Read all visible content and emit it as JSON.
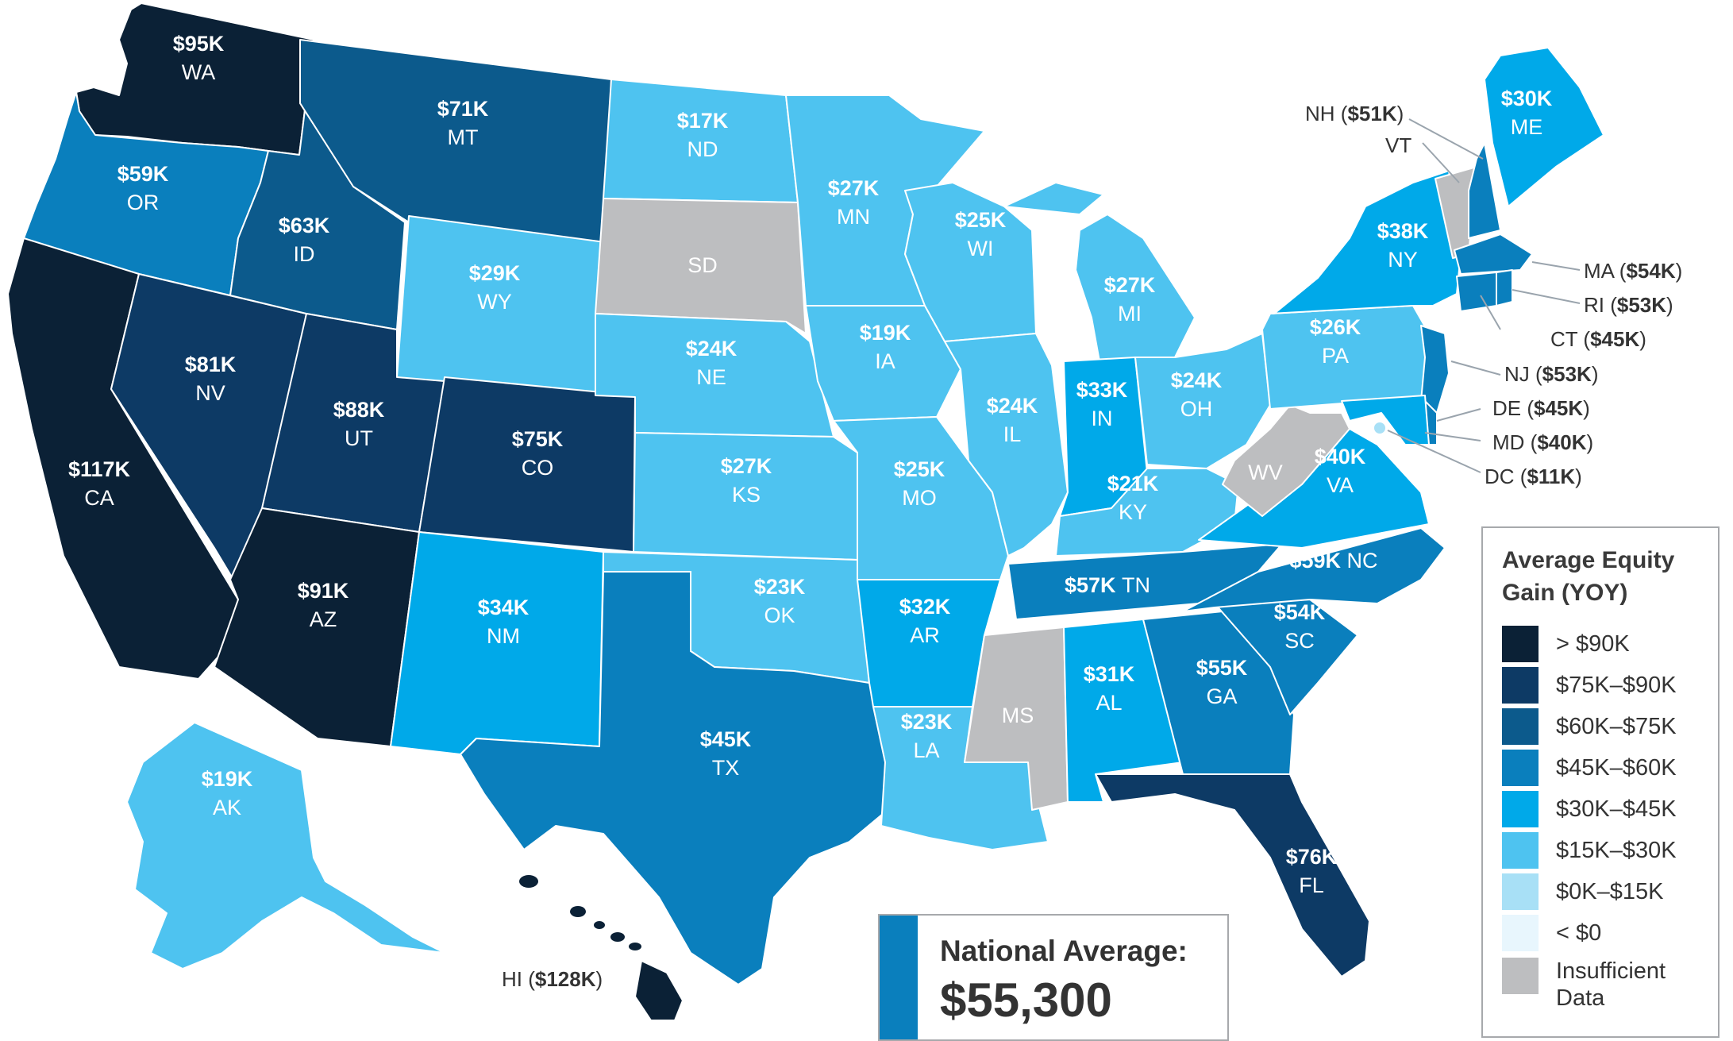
{
  "colors": {
    "gt90": "#0b2136",
    "75_90": "#0d3a65",
    "60_75": "#0c5a8c",
    "45_60": "#0a7fbd",
    "30_45": "#00a9e9",
    "15_30": "#4ec3f0",
    "0_15": "#a8e0f6",
    "lt0": "#e8f6fd",
    "insufficient": "#bdbec0"
  },
  "states": {
    "WA": {
      "abbr": "WA",
      "value": "$95K"
    },
    "OR": {
      "abbr": "OR",
      "value": "$59K"
    },
    "CA": {
      "abbr": "CA",
      "value": "$117K"
    },
    "NV": {
      "abbr": "NV",
      "value": "$81K"
    },
    "ID": {
      "abbr": "ID",
      "value": "$63K"
    },
    "MT": {
      "abbr": "MT",
      "value": "$71K"
    },
    "WY": {
      "abbr": "WY",
      "value": "$29K"
    },
    "UT": {
      "abbr": "UT",
      "value": "$88K"
    },
    "AZ": {
      "abbr": "AZ",
      "value": "$91K"
    },
    "CO": {
      "abbr": "CO",
      "value": "$75K"
    },
    "NM": {
      "abbr": "NM",
      "value": "$34K"
    },
    "ND": {
      "abbr": "ND",
      "value": "$17K"
    },
    "SD": {
      "abbr": "SD",
      "value": ""
    },
    "NE": {
      "abbr": "NE",
      "value": "$24K"
    },
    "KS": {
      "abbr": "KS",
      "value": "$27K"
    },
    "OK": {
      "abbr": "OK",
      "value": "$23K"
    },
    "TX": {
      "abbr": "TX",
      "value": "$45K"
    },
    "MN": {
      "abbr": "MN",
      "value": "$27K"
    },
    "IA": {
      "abbr": "IA",
      "value": "$19K"
    },
    "MO": {
      "abbr": "MO",
      "value": "$25K"
    },
    "AR": {
      "abbr": "AR",
      "value": "$32K"
    },
    "LA": {
      "abbr": "LA",
      "value": "$23K"
    },
    "WI": {
      "abbr": "WI",
      "value": "$25K"
    },
    "IL": {
      "abbr": "IL",
      "value": "$24K"
    },
    "MI": {
      "abbr": "MI",
      "value": "$27K"
    },
    "IN": {
      "abbr": "IN",
      "value": "$33K"
    },
    "OH": {
      "abbr": "OH",
      "value": "$24K"
    },
    "KY": {
      "abbr": "KY",
      "value": "$21K"
    },
    "TN": {
      "abbr": "TN",
      "value": "$57K"
    },
    "MS": {
      "abbr": "MS",
      "value": ""
    },
    "AL": {
      "abbr": "AL",
      "value": "$31K"
    },
    "GA": {
      "abbr": "GA",
      "value": "$55K"
    },
    "FL": {
      "abbr": "FL",
      "value": "$76K"
    },
    "SC": {
      "abbr": "SC",
      "value": "$54K"
    },
    "NC": {
      "abbr": "NC",
      "value": "$59K"
    },
    "VA": {
      "abbr": "VA",
      "value": "$40K"
    },
    "WV": {
      "abbr": "WV",
      "value": ""
    },
    "PA": {
      "abbr": "PA",
      "value": "$26K"
    },
    "NY": {
      "abbr": "NY",
      "value": "$38K"
    },
    "ME": {
      "abbr": "ME",
      "value": "$30K"
    },
    "AK": {
      "abbr": "AK",
      "value": "$19K"
    }
  },
  "callouts": {
    "NH": {
      "abbr": "NH (",
      "value": "$51K",
      "close": ")"
    },
    "VT": {
      "abbr": "VT"
    },
    "MA": {
      "abbr": "MA (",
      "value": "$54K",
      "close": ")"
    },
    "RI": {
      "abbr": "RI (",
      "value": "$53K",
      "close": ")"
    },
    "CT": {
      "abbr": "CT (",
      "value": "$45K",
      "close": ")"
    },
    "NJ": {
      "abbr": "NJ  (",
      "value": "$53K",
      "close": ")"
    },
    "DE": {
      "abbr": "DE (",
      "value": "$45K",
      "close": ")"
    },
    "MD": {
      "abbr": "MD (",
      "value": "$40K",
      "close": ")"
    },
    "DC": {
      "abbr": "DC (",
      "value": "$11K",
      "close": ")"
    },
    "HI": {
      "abbr": "HI (",
      "value": "$128K",
      "close": ")"
    }
  },
  "legend": {
    "title": "Average Equity Gain (YOY)",
    "items": [
      {
        "label": "> $90K",
        "color": "#0b2136"
      },
      {
        "label": "$75K–$90K",
        "color": "#0d3a65"
      },
      {
        "label": "$60K–$75K",
        "color": "#0c5a8c"
      },
      {
        "label": "$45K–$60K",
        "color": "#0a7fbd"
      },
      {
        "label": "$30K–$45K",
        "color": "#00a9e9"
      },
      {
        "label": "$15K–$30K",
        "color": "#4ec3f0"
      },
      {
        "label": "$0K–$15K",
        "color": "#a8e0f6"
      },
      {
        "label": "< $0",
        "color": "#e8f6fd"
      },
      {
        "label": "Insufficient Data",
        "color": "#bdbec0"
      }
    ]
  },
  "national": {
    "label": "National Average:",
    "value": "$55,300"
  }
}
